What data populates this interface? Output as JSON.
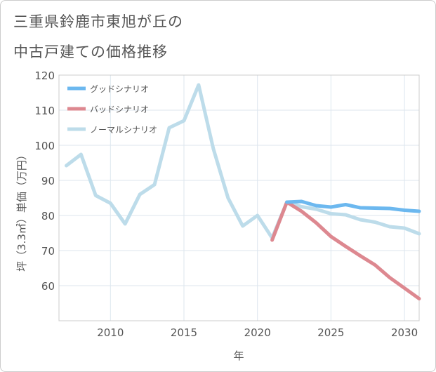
{
  "chart_data": {
    "type": "line",
    "title": [
      "三重県鈴鹿市東旭が丘の",
      "中古戸建ての価格推移"
    ],
    "xlabel": "年",
    "ylabel": "坪（3.3㎡）単価（万円）",
    "xlim": [
      2006.5,
      2031
    ],
    "ylim": [
      50,
      120
    ],
    "x_ticks": [
      2010,
      2015,
      2020,
      2025,
      2030
    ],
    "y_ticks": [
      60,
      70,
      80,
      90,
      100,
      110,
      120
    ],
    "grid": true,
    "legend_position": "top-left",
    "series": [
      {
        "name": "グッドシナリオ",
        "color": "#6cb8ef",
        "x": [
          2022,
          2023,
          2024,
          2025,
          2026,
          2027,
          2028,
          2029,
          2030,
          2031
        ],
        "values": [
          83.8,
          84.0,
          82.8,
          82.4,
          83.1,
          82.2,
          82.1,
          82.0,
          81.5,
          81.2
        ]
      },
      {
        "name": "バッドシナリオ",
        "color": "#dd8890",
        "x": [
          2021,
          2022,
          2023,
          2024,
          2025,
          2026,
          2027,
          2028,
          2029,
          2030,
          2031
        ],
        "values": [
          73.0,
          83.8,
          81.2,
          77.9,
          74.0,
          71.2,
          68.5,
          65.9,
          62.3,
          59.3,
          56.3
        ]
      },
      {
        "name": "ノーマルシナリオ",
        "color": "#bddcea",
        "x": [
          2007,
          2008,
          2009,
          2010,
          2011,
          2012,
          2013,
          2014,
          2015,
          2016,
          2017,
          2018,
          2019,
          2020,
          2021,
          2022,
          2023,
          2024,
          2025,
          2026,
          2027,
          2028,
          2029,
          2030,
          2031
        ],
        "values": [
          94.2,
          97.4,
          85.7,
          83.5,
          77.6,
          86.0,
          88.8,
          105.0,
          107.0,
          117.2,
          99.0,
          85.0,
          77.0,
          80.0,
          73.6,
          83.8,
          82.5,
          81.8,
          80.5,
          80.2,
          78.8,
          78.1,
          76.8,
          76.4,
          74.8
        ]
      }
    ]
  }
}
